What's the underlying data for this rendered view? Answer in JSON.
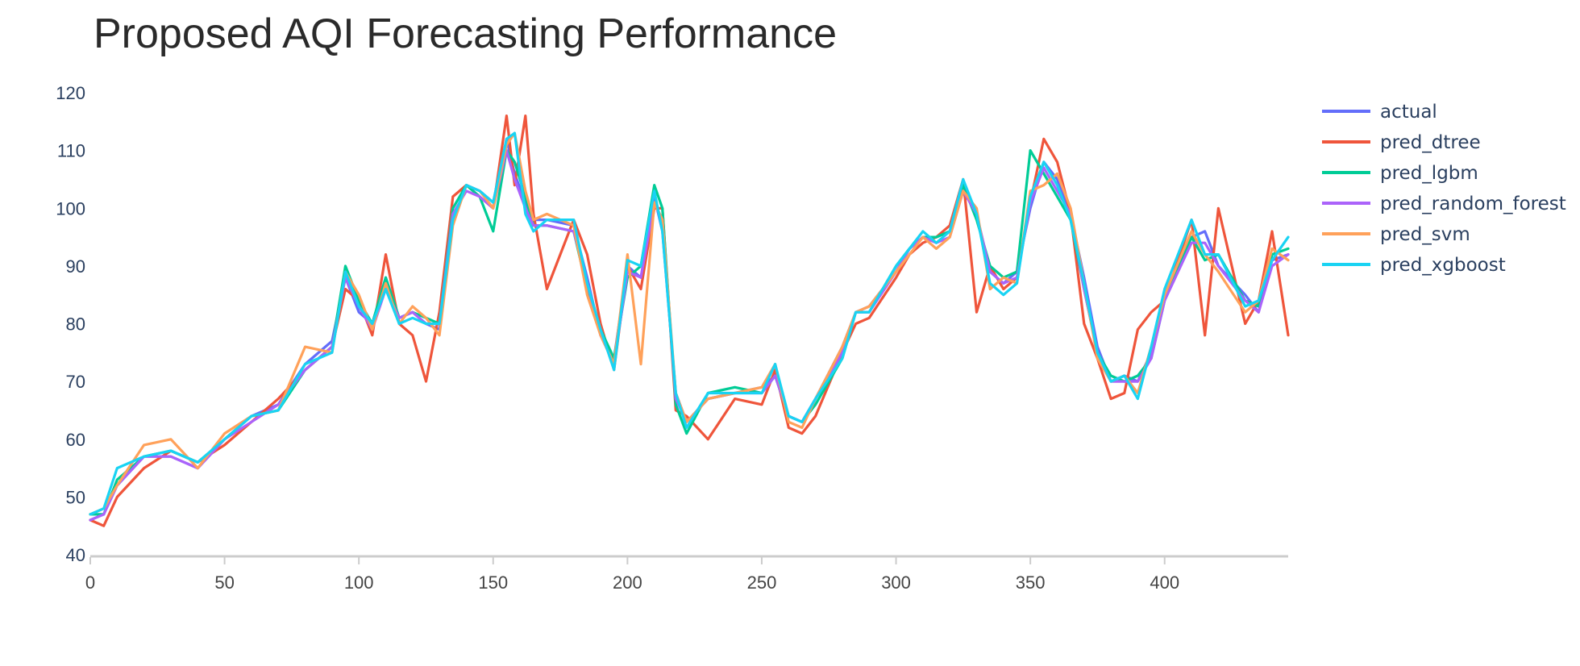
{
  "chart_data": {
    "type": "line",
    "title": "Proposed AQI Forecasting Performance",
    "xlabel": "",
    "ylabel": "",
    "xlim": [
      0,
      446
    ],
    "ylim": [
      40,
      120
    ],
    "x_ticks": [
      0,
      50,
      100,
      150,
      200,
      250,
      300,
      350,
      400
    ],
    "y_ticks": [
      40,
      50,
      60,
      70,
      80,
      90,
      100,
      110,
      120
    ],
    "grid": false,
    "legend_position": "top-right",
    "x": [
      0,
      5,
      10,
      20,
      30,
      40,
      50,
      60,
      70,
      80,
      90,
      95,
      100,
      105,
      110,
      115,
      120,
      125,
      130,
      135,
      140,
      145,
      150,
      155,
      158,
      162,
      165,
      170,
      180,
      185,
      190,
      195,
      200,
      205,
      210,
      213,
      218,
      222,
      230,
      240,
      250,
      255,
      260,
      265,
      270,
      280,
      285,
      290,
      300,
      305,
      310,
      315,
      320,
      325,
      330,
      335,
      340,
      345,
      350,
      355,
      360,
      365,
      370,
      375,
      380,
      385,
      390,
      395,
      400,
      410,
      415,
      420,
      430,
      435,
      440,
      446
    ],
    "series": [
      {
        "name": "actual",
        "color": "#636efa",
        "values": [
          46,
          47,
          52,
          57,
          57,
          55,
          60,
          64,
          66,
          73,
          77,
          88,
          82,
          80,
          88,
          81,
          82,
          80,
          79,
          98,
          104,
          103,
          101,
          112,
          106,
          101,
          98,
          98,
          97,
          88,
          78,
          74,
          90,
          88,
          102,
          96,
          68,
          63,
          67,
          68,
          69,
          71,
          64,
          63,
          67,
          76,
          82,
          83,
          89,
          93,
          95,
          95,
          96,
          104,
          99,
          89,
          87,
          89,
          100,
          108,
          105,
          99,
          88,
          76,
          70,
          71,
          70,
          75,
          85,
          95,
          96,
          90,
          85,
          82,
          91,
          92
        ]
      },
      {
        "name": "pred_dtree",
        "color": "#ef553b",
        "values": [
          46,
          45,
          50,
          55,
          58,
          56,
          59,
          63,
          67,
          72,
          76,
          86,
          84,
          78,
          92,
          80,
          78,
          70,
          82,
          102,
          104,
          102,
          100,
          116,
          104,
          116,
          99,
          86,
          98,
          92,
          80,
          72,
          90,
          86,
          100,
          100,
          65,
          64,
          60,
          67,
          66,
          72,
          62,
          61,
          64,
          75,
          80,
          81,
          88,
          92,
          94,
          95,
          97,
          105,
          82,
          90,
          86,
          88,
          101,
          112,
          108,
          99,
          80,
          74,
          67,
          68,
          79,
          82,
          84,
          98,
          78,
          100,
          80,
          84,
          96,
          78
        ]
      },
      {
        "name": "pred_lgbm",
        "color": "#00cc96",
        "values": [
          47,
          47,
          53,
          57,
          58,
          56,
          60,
          64,
          65,
          72,
          76,
          90,
          84,
          80,
          88,
          81,
          82,
          81,
          80,
          100,
          104,
          102,
          96,
          110,
          108,
          102,
          97,
          97,
          96,
          86,
          79,
          74,
          88,
          90,
          104,
          100,
          66,
          61,
          68,
          69,
          68,
          71,
          64,
          63,
          66,
          74,
          82,
          82,
          90,
          93,
          95,
          95,
          96,
          104,
          98,
          90,
          88,
          89,
          110,
          106,
          102,
          98,
          86,
          75,
          71,
          70,
          71,
          74,
          84,
          95,
          91,
          92,
          84,
          83,
          92,
          93
        ]
      },
      {
        "name": "pred_random_forest",
        "color": "#ab63fa",
        "values": [
          46,
          47,
          52,
          57,
          57,
          55,
          60,
          63,
          66,
          72,
          76,
          88,
          83,
          79,
          86,
          81,
          82,
          80,
          80,
          99,
          103,
          102,
          100,
          110,
          105,
          100,
          97,
          97,
          96,
          87,
          78,
          73,
          89,
          88,
          101,
          98,
          67,
          63,
          67,
          68,
          68,
          71,
          64,
          63,
          67,
          75,
          82,
          82,
          89,
          93,
          95,
          94,
          95,
          103,
          99,
          89,
          87,
          88,
          101,
          107,
          103,
          99,
          86,
          75,
          70,
          70,
          70,
          74,
          84,
          94,
          94,
          90,
          84,
          82,
          90,
          92
        ]
      },
      {
        "name": "pred_svm",
        "color": "#ffa15a",
        "values": [
          47,
          48,
          52,
          59,
          60,
          55,
          61,
          64,
          65,
          76,
          75,
          89,
          85,
          79,
          87,
          80,
          83,
          81,
          78,
          97,
          104,
          103,
          100,
          111,
          113,
          103,
          98,
          99,
          97,
          85,
          78,
          73,
          92,
          73,
          101,
          98,
          68,
          63,
          67,
          68,
          69,
          73,
          63,
          62,
          67,
          76,
          82,
          83,
          89,
          92,
          95,
          93,
          95,
          103,
          100,
          86,
          88,
          87,
          103,
          104,
          106,
          100,
          87,
          74,
          70,
          71,
          68,
          76,
          85,
          96,
          92,
          89,
          82,
          84,
          93,
          91
        ]
      },
      {
        "name": "pred_xgboost",
        "color": "#19d3f3",
        "values": [
          47,
          48,
          55,
          57,
          58,
          56,
          60,
          64,
          65,
          73,
          75,
          89,
          83,
          80,
          86,
          80,
          81,
          80,
          80,
          98,
          104,
          103,
          101,
          112,
          113,
          99,
          96,
          98,
          98,
          87,
          79,
          72,
          91,
          90,
          103,
          96,
          68,
          62,
          68,
          68,
          68,
          73,
          64,
          63,
          67,
          74,
          82,
          82,
          90,
          93,
          96,
          94,
          96,
          105,
          99,
          87,
          85,
          87,
          102,
          108,
          104,
          98,
          87,
          75,
          70,
          71,
          67,
          76,
          86,
          98,
          92,
          92,
          83,
          84,
          91,
          95
        ]
      }
    ]
  }
}
